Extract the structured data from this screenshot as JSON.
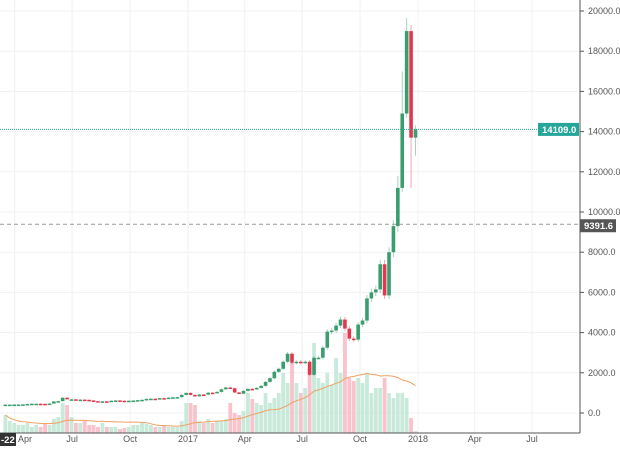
{
  "chart_data": {
    "type": "candlestick",
    "interval": "1W",
    "first_week": "2016-03-14",
    "closes": [
      415,
      416,
      420,
      420,
      430,
      450,
      460,
      460,
      455,
      440,
      470,
      575,
      590,
      760,
      680,
      680,
      650,
      665,
      655,
      625,
      590,
      570,
      580,
      575,
      610,
      625,
      610,
      600,
      610,
      620,
      640,
      655,
      700,
      710,
      705,
      740,
      735,
      765,
      780,
      790,
      900,
      1000,
      900,
      830,
      920,
      915,
      1010,
      1000,
      1050,
      1180,
      1270,
      1230,
      1020,
      960,
      1100,
      1200,
      1180,
      1250,
      1350,
      1550,
      1730,
      2050,
      2200,
      2550,
      2950,
      2500,
      2550,
      2500,
      2550,
      1900,
      2750,
      2750,
      3250,
      4050,
      4100,
      4350,
      4650,
      4200,
      3700,
      3650,
      4400,
      4600,
      5700,
      6000,
      6150,
      7400,
      5850,
      8000,
      9300,
      11200,
      14900,
      19000,
      13700,
      14109
    ],
    "first_open": 410,
    "wick_overrides": {
      "89": {
        "high": 11800,
        "low": 9000
      },
      "90": {
        "high": 17000,
        "low": 11000
      },
      "91": {
        "high": 19650,
        "low": 14700
      },
      "92": {
        "high": 19300,
        "low": 11200
      },
      "93": {
        "high": 14300,
        "low": 12800
      }
    },
    "volume": [
      18,
      12,
      10,
      8,
      8,
      10,
      6,
      8,
      6,
      9,
      8,
      14,
      16,
      30,
      28,
      16,
      10,
      10,
      12,
      8,
      8,
      6,
      10,
      6,
      6,
      6,
      4,
      5,
      6,
      8,
      8,
      10,
      9,
      8,
      6,
      6,
      7,
      6,
      6,
      6,
      12,
      30,
      30,
      28,
      12,
      10,
      14,
      10,
      12,
      12,
      14,
      30,
      20,
      18,
      22,
      40,
      34,
      30,
      28,
      40,
      30,
      35,
      40,
      60,
      50,
      70,
      50,
      40,
      45,
      65,
      90,
      55,
      50,
      60,
      48,
      75,
      60,
      100,
      55,
      52,
      55,
      50,
      60,
      40,
      45,
      45,
      55,
      40,
      35,
      40,
      40,
      35,
      15,
      2
    ],
    "volume_ma_length": 20,
    "y_ticks": [
      "20000.0",
      "18000.0",
      "16000.0",
      "14000.0",
      "12000.0",
      "10000.0",
      "8000.0",
      "6000.0",
      "4000.0",
      "2000.0",
      "0.0"
    ],
    "ylim": [
      0,
      20000
    ],
    "x_ticks": [
      {
        "label": "Apr",
        "date": "2016-04-01"
      },
      {
        "label": "Jul",
        "date": "2016-07-01"
      },
      {
        "label": "Oct",
        "date": "2016-10-01"
      },
      {
        "label": "2017",
        "date": "2017-01-01"
      },
      {
        "label": "Apr",
        "date": "2017-04-01"
      },
      {
        "label": "Jul",
        "date": "2017-07-01"
      },
      {
        "label": "Oct",
        "date": "2017-10-01"
      },
      {
        "label": "2018",
        "date": "2018-01-01"
      },
      {
        "label": "Apr",
        "date": "2018-04-01"
      },
      {
        "label": "Jul",
        "date": "2018-07-01"
      }
    ],
    "last_price": {
      "value": 14109.0,
      "label": "14109.0",
      "color": "#26a69a"
    },
    "marker_line": {
      "value": 9391.6,
      "label": "9391.6",
      "color": "#555555"
    },
    "crosshair_date_label": "-22",
    "grid": true,
    "colors": {
      "up": "#3a9d6e",
      "down": "#e0384f",
      "up_volume": "#bfe6d3",
      "down_volume": "#f7b9c3",
      "volume_ma": "#f0a060"
    }
  }
}
